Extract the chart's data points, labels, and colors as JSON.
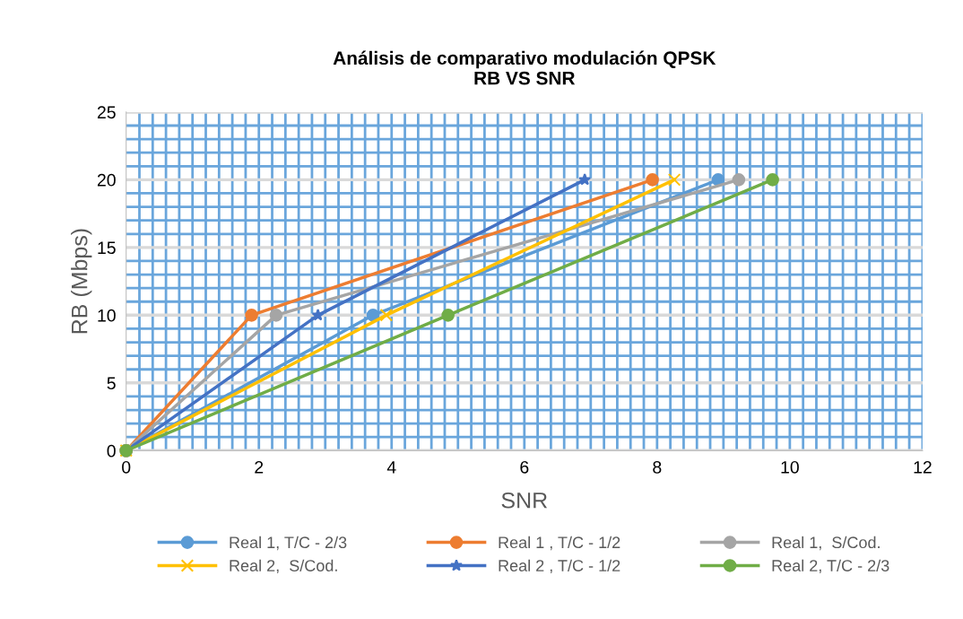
{
  "chart_data": {
    "type": "line",
    "title": "Análisis de comparativo modulación QPSK\nRB VS SNR",
    "xlabel": "SNR",
    "ylabel": "RB (Mbps)",
    "xlim": [
      0,
      12
    ],
    "xticks": [
      0,
      {
        "value": 0.2,
        "label": null
      },
      {
        "value": 0.4,
        "label": null
      },
      {
        "value": 0.6,
        "label": null
      },
      {
        "value": 0.8,
        "label": null
      },
      {
        "value": 1,
        "label": null
      },
      {
        "value": 1.2,
        "label": null
      },
      {
        "value": 1.4,
        "label": null
      },
      {
        "value": 1.6,
        "label": null
      },
      {
        "value": 1.8,
        "label": null
      },
      2,
      {
        "value": 2.2,
        "label": null
      },
      {
        "value": 2.4,
        "label": null
      },
      {
        "value": 2.6,
        "label": null
      },
      {
        "value": 2.8,
        "label": null
      },
      {
        "value": 3,
        "label": null
      },
      {
        "value": 3.2,
        "label": null
      },
      {
        "value": 3.4,
        "label": null
      },
      {
        "value": 3.6,
        "label": null
      },
      {
        "value": 3.8,
        "label": null
      },
      4,
      {
        "value": 4.2,
        "label": null
      },
      {
        "value": 4.4,
        "label": null
      },
      {
        "value": 4.6,
        "label": null
      },
      {
        "value": 4.8,
        "label": null
      },
      {
        "value": 5,
        "label": null
      },
      {
        "value": 5.2,
        "label": null
      },
      {
        "value": 5.4,
        "label": null
      },
      {
        "value": 5.6,
        "label": null
      },
      {
        "value": 5.8,
        "label": null
      },
      6,
      {
        "value": 6.2,
        "label": null
      },
      {
        "value": 6.4,
        "label": null
      },
      {
        "value": 6.6,
        "label": null
      },
      {
        "value": 6.8,
        "label": null
      },
      {
        "value": 7,
        "label": null
      },
      {
        "value": 7.2,
        "label": null
      },
      {
        "value": 7.4,
        "label": null
      },
      {
        "value": 7.6,
        "label": null
      },
      {
        "value": 7.8,
        "label": null
      },
      8,
      {
        "value": 8.2,
        "label": null
      },
      {
        "value": 8.4,
        "label": null
      },
      {
        "value": 8.6,
        "label": null
      },
      {
        "value": 8.8,
        "label": null
      },
      {
        "value": 9,
        "label": null
      },
      {
        "value": 9.2,
        "label": null
      },
      {
        "value": 9.4,
        "label": null
      },
      {
        "value": 9.6,
        "label": null
      },
      {
        "value": 9.8,
        "label": null
      },
      10,
      {
        "value": 10.2,
        "label": null
      },
      {
        "value": 10.4,
        "label": null
      },
      {
        "value": 10.6,
        "label": null
      },
      {
        "value": 10.8,
        "label": null
      },
      {
        "value": 11,
        "label": null
      },
      {
        "value": 11.2,
        "label": null
      },
      {
        "value": 11.4,
        "label": null
      },
      {
        "value": 11.6,
        "label": null
      },
      {
        "value": 11.8,
        "label": null
      },
      12
    ],
    "ylim": [
      0,
      25
    ],
    "yticks": [
      0,
      {
        "value": 1,
        "label": null
      },
      {
        "value": 2,
        "label": null
      },
      {
        "value": 3,
        "label": null
      },
      {
        "value": 4,
        "label": null
      },
      5,
      {
        "value": 6,
        "label": null
      },
      {
        "value": 7,
        "label": null
      },
      {
        "value": 8,
        "label": null
      },
      {
        "value": 9,
        "label": null
      },
      10,
      {
        "value": 11,
        "label": null
      },
      {
        "value": 12,
        "label": null
      },
      {
        "value": 13,
        "label": null
      },
      {
        "value": 14,
        "label": null
      },
      15,
      {
        "value": 16,
        "label": null
      },
      {
        "value": 17,
        "label": null
      },
      {
        "value": 18,
        "label": null
      },
      {
        "value": 19,
        "label": null
      },
      20,
      {
        "value": 21,
        "label": null
      },
      {
        "value": 22,
        "label": null
      },
      {
        "value": 23,
        "label": null
      },
      {
        "value": 24,
        "label": null
      },
      25
    ],
    "grid": true,
    "legend": "bottom",
    "series": [
      {
        "name": "Real 1, T/C - 2/3",
        "color": "#5b9bd5",
        "marker": "circle",
        "x": [
          0,
          3.72,
          8.92
        ],
        "values": [
          0,
          10,
          20
        ]
      },
      {
        "name": "Real 1 , T/C - 1/2",
        "color": "#ed7d31",
        "marker": "circle",
        "x": [
          0,
          1.89,
          7.93
        ],
        "values": [
          0,
          10,
          20
        ]
      },
      {
        "name": "Real 1,  S/Cod.",
        "color": "#a5a5a5",
        "marker": "circle",
        "x": [
          0,
          2.26,
          9.23
        ],
        "values": [
          0,
          10,
          20
        ]
      },
      {
        "name": "Real 2,  S/Cod.",
        "color": "#ffc000",
        "marker": "cross",
        "x": [
          0,
          3.92,
          8.26
        ],
        "values": [
          0,
          10,
          20
        ]
      },
      {
        "name": "Real 2 , T/C - 1/2",
        "color": "#4472c4",
        "marker": "star",
        "x": [
          0,
          2.89,
          6.91
        ],
        "values": [
          0,
          10,
          20
        ]
      },
      {
        "name": "Real 2, T/C - 2/3",
        "color": "#70ad47",
        "marker": "circle",
        "x": [
          0,
          4.85,
          9.74
        ],
        "values": [
          0,
          10,
          20
        ]
      }
    ]
  }
}
